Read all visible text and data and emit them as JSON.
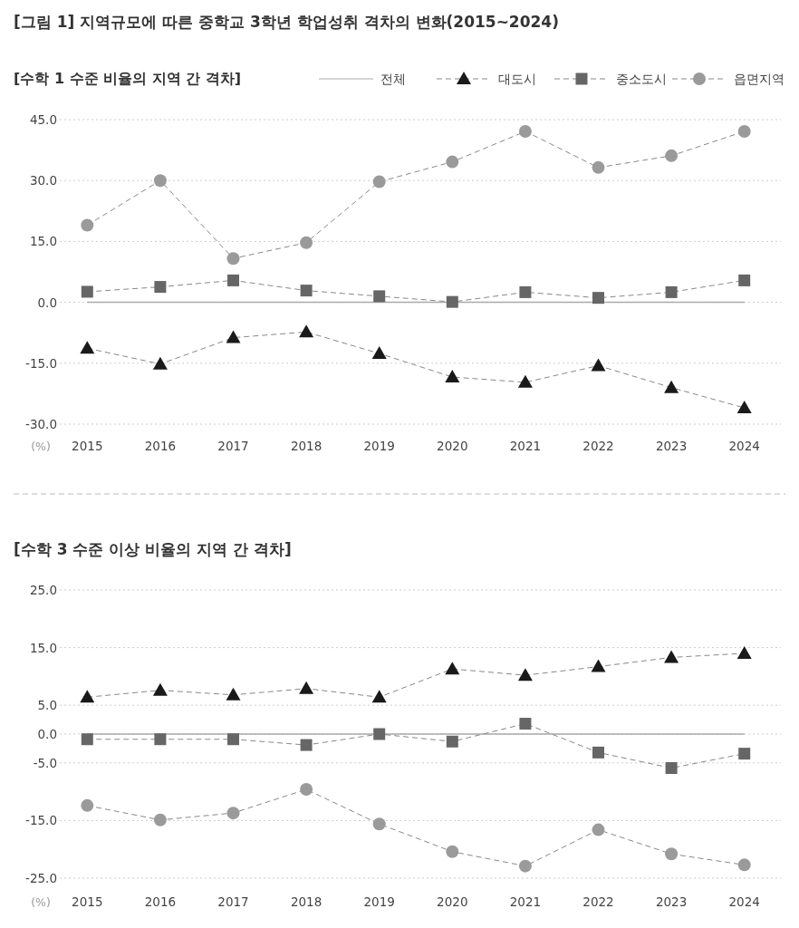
{
  "chart_data": [
    {
      "type": "line",
      "title": "[그림 1] 지역규모에 따른 중학교 3학년 학업성취 격차의 변화(2015~2024)",
      "subtitle": "[수학 1 수준 비율의 지역 간 격차]",
      "ylabel": "(%)",
      "categories": [
        "2015",
        "2016",
        "2017",
        "2018",
        "2019",
        "2020",
        "2021",
        "2022",
        "2023",
        "2024"
      ],
      "ylim": [
        -30,
        45
      ],
      "yticks": [
        {
          "value": 45,
          "label": "45.0"
        },
        {
          "value": 30,
          "label": "30.0"
        },
        {
          "value": 15,
          "label": "15.0"
        },
        {
          "value": 0,
          "label": "0.0"
        },
        {
          "value": -15,
          "label": "-15.0"
        },
        {
          "value": -30,
          "label": "-30.0"
        }
      ],
      "grid": "y",
      "legend": "top right",
      "series": [
        {
          "name": "전체",
          "color": "#aaaaaa",
          "marker": "none",
          "line_style": "solid",
          "values": [
            0,
            0,
            0,
            0,
            0,
            0,
            0,
            0,
            0,
            0
          ]
        },
        {
          "name": "대도시",
          "color": "#1a1a1a",
          "marker": "triangle",
          "line_style": "dashed",
          "values": [
            -11.3,
            -15.2,
            -8.7,
            -7.3,
            -12.6,
            -18.4,
            -19.7,
            -15.6,
            -21.0,
            -26.0
          ]
        },
        {
          "name": "중소도시",
          "color": "#666666",
          "marker": "square",
          "line_style": "dashed",
          "values": [
            2.6,
            3.8,
            5.4,
            2.9,
            1.5,
            0.1,
            2.5,
            1.1,
            2.5,
            5.4
          ]
        },
        {
          "name": "읍면지역",
          "color": "#9a9a9a",
          "marker": "circle",
          "line_style": "dashed",
          "values": [
            19.0,
            30.0,
            10.8,
            14.7,
            29.7,
            34.6,
            42.1,
            33.2,
            36.1,
            42.1
          ]
        }
      ]
    },
    {
      "type": "line",
      "title": "[수학 3 수준 이상 비율의 지역 간 격차]",
      "ylabel": "(%)",
      "categories": [
        "2015",
        "2016",
        "2017",
        "2018",
        "2019",
        "2020",
        "2021",
        "2022",
        "2023",
        "2024"
      ],
      "ylim": [
        -25,
        25
      ],
      "yticks": [
        {
          "value": 25,
          "label": "25.0"
        },
        {
          "value": 15,
          "label": "15.0"
        },
        {
          "value": 5,
          "label": "5.0"
        },
        {
          "value": 0,
          "label": "0.0"
        },
        {
          "value": -5,
          "label": "-5.0"
        },
        {
          "value": -15,
          "label": "-15.0"
        },
        {
          "value": -25,
          "label": "-25.0"
        }
      ],
      "grid": "y",
      "series": [
        {
          "color": "#aaaaaa",
          "marker": "none",
          "line_style": "solid",
          "values": [
            0,
            0,
            0,
            0,
            0,
            0,
            0,
            0,
            0,
            0
          ]
        },
        {
          "color": "#1a1a1a",
          "marker": "triangle",
          "line_style": "dashed",
          "values": [
            6.4,
            7.6,
            6.8,
            7.9,
            6.4,
            11.3,
            10.2,
            11.7,
            13.3,
            14.0
          ]
        },
        {
          "color": "#666666",
          "marker": "square",
          "line_style": "dashed",
          "values": [
            -0.9,
            -0.9,
            -0.9,
            -1.9,
            0.0,
            -1.3,
            1.8,
            -3.2,
            -5.9,
            -3.4
          ]
        },
        {
          "color": "#9a9a9a",
          "marker": "circle",
          "line_style": "dashed",
          "values": [
            -12.4,
            -14.9,
            -13.7,
            -9.6,
            -15.6,
            -20.4,
            -22.9,
            -16.6,
            -20.8,
            -22.7
          ]
        }
      ]
    }
  ]
}
